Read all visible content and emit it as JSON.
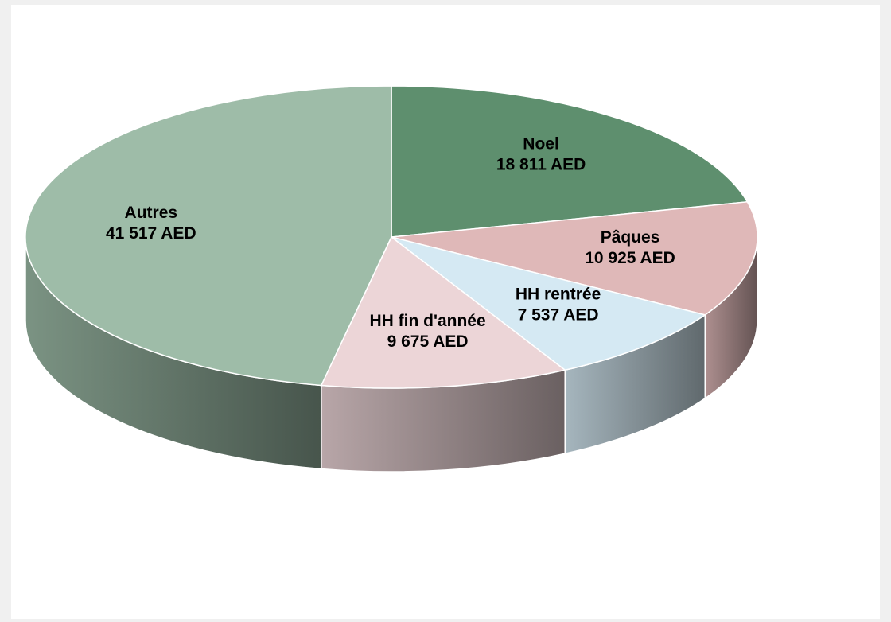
{
  "chart_data": {
    "type": "pie",
    "categories": [
      "Noel",
      "Pâques",
      "HH rentrée",
      "HH fin d'année",
      "Autres"
    ],
    "values": [
      18811,
      10925,
      7537,
      9675,
      41517
    ],
    "value_labels": [
      "18 811 AED",
      "10 925 AED",
      "7 537 AED",
      "9 675 AED",
      "41 517 AED"
    ],
    "colors": [
      "#5e8f6e",
      "#dfb8b8",
      "#d5e9f3",
      "#ecd5d7",
      "#9ebca8"
    ]
  }
}
